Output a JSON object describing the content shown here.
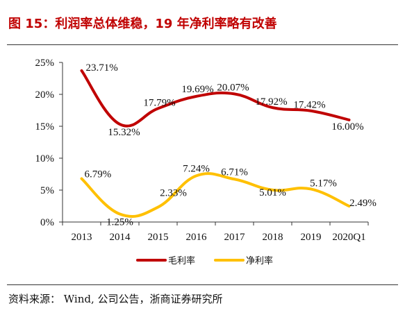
{
  "title": "图 15：利润率总体维稳，19 年净利率略有改善",
  "source": "资料来源： Wind, 公司公告，浙商证券研究所",
  "chart_data": {
    "type": "line",
    "categories": [
      "2013",
      "2014",
      "2015",
      "2016",
      "2017",
      "2018",
      "2019",
      "2020Q1"
    ],
    "series": [
      {
        "name": "毛利率",
        "color": "#c00000",
        "values": [
          23.71,
          15.32,
          17.79,
          19.69,
          20.07,
          17.92,
          17.42,
          16.0
        ],
        "labels": [
          "23.71%",
          "15.32%",
          "17.79%",
          "19.69%",
          "20.07%",
          "17.92%",
          "17.42%",
          "16.00%"
        ]
      },
      {
        "name": "净利率",
        "color": "#ffc000",
        "values": [
          6.79,
          1.25,
          2.33,
          7.24,
          6.71,
          5.01,
          5.17,
          2.49
        ],
        "labels": [
          "6.79%",
          "1.25%",
          "2.33%",
          "7.24%",
          "6.71%",
          "5.01%",
          "5.17%",
          "2.49%"
        ]
      }
    ],
    "y_ticks": [
      "0%",
      "5%",
      "10%",
      "15%",
      "20%",
      "25%"
    ],
    "ylim": [
      0,
      25
    ],
    "smooth": true,
    "grid": false,
    "legend": "bottom"
  }
}
